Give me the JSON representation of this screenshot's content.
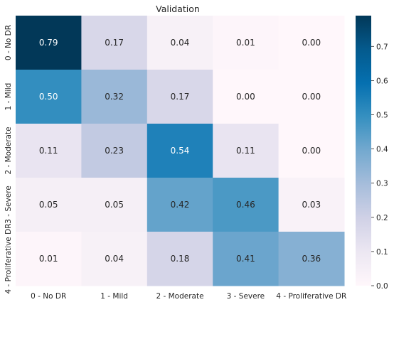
{
  "chart_data": {
    "type": "heatmap",
    "title": "Validation",
    "x_categories": [
      "0 - No DR",
      "1 - Mild",
      "2 - Moderate",
      "3 - Severe",
      "4 - Proliferative DR"
    ],
    "y_categories": [
      "0 - No DR",
      "1 - Mild",
      "2 - Moderate",
      "3 - Severe",
      "4 - Proliferative DR"
    ],
    "values": [
      [
        0.79,
        0.17,
        0.04,
        0.01,
        0.0
      ],
      [
        0.5,
        0.32,
        0.17,
        0.0,
        0.0
      ],
      [
        0.11,
        0.23,
        0.54,
        0.11,
        0.0
      ],
      [
        0.05,
        0.05,
        0.42,
        0.46,
        0.03
      ],
      [
        0.01,
        0.04,
        0.18,
        0.41,
        0.36
      ]
    ],
    "value_labels": [
      [
        "0.79",
        "0.17",
        "0.04",
        "0.01",
        "0.00"
      ],
      [
        "0.50",
        "0.32",
        "0.17",
        "0.00",
        "0.00"
      ],
      [
        "0.11",
        "0.23",
        "0.54",
        "0.11",
        "0.00"
      ],
      [
        "0.05",
        "0.05",
        "0.42",
        "0.46",
        "0.03"
      ],
      [
        "0.01",
        "0.04",
        "0.18",
        "0.41",
        "0.36"
      ]
    ],
    "colorbar": {
      "range": [
        0,
        0.79
      ],
      "ticks": [
        0.0,
        0.1,
        0.2,
        0.3,
        0.4,
        0.5,
        0.6,
        0.7
      ],
      "tick_labels": [
        "0.0",
        "0.1",
        "0.2",
        "0.3",
        "0.4",
        "0.5",
        "0.6",
        "0.7"
      ],
      "colormap": "PuBu"
    },
    "colormap_stops": [
      "#fff7fb",
      "#ece7f2",
      "#d0d1e6",
      "#a6bddb",
      "#74a9cf",
      "#3690c0",
      "#0570b0",
      "#045a8d",
      "#023858"
    ]
  }
}
